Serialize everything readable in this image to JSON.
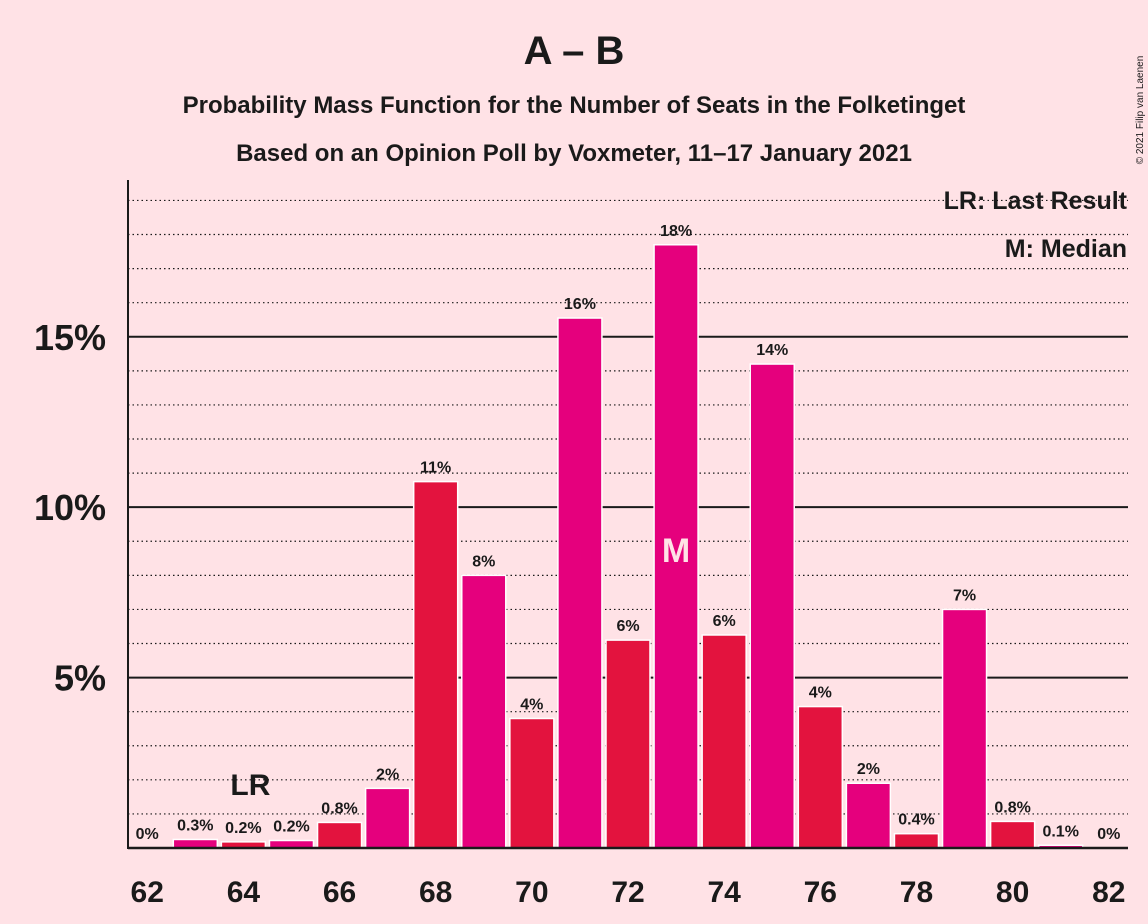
{
  "chart_data": {
    "type": "bar",
    "title": "A – B",
    "subtitle_1": "Probability Mass Function for the Number of Seats in the Folketinget",
    "subtitle_2": "Based on an Opinion Poll by Voxmeter, 11–17 January 2021",
    "copyright": "© 2021 Filip van Laenen",
    "legend": {
      "placement": "top-right",
      "last_result": "LR: Last Result",
      "median": "M: Median"
    },
    "x_ticks": [
      "62",
      "64",
      "66",
      "68",
      "70",
      "72",
      "74",
      "76",
      "78",
      "80",
      "82"
    ],
    "y_ticks": [
      {
        "value": 5,
        "label": "5%"
      },
      {
        "value": 10,
        "label": "10%"
      },
      {
        "value": 15,
        "label": "15%"
      }
    ],
    "ylim": [
      0,
      19.6
    ],
    "xlim": [
      61.6,
      82.4
    ],
    "last_result_seat": 64,
    "last_result_label": "LR",
    "median_seat": 73,
    "median_label": "M",
    "colors": {
      "even": "#E3133E",
      "odd": "#E5007D",
      "background": "#FFE2E6",
      "text": "#1a1a1a"
    },
    "bars": [
      {
        "seat": 62,
        "value": 0.0,
        "label": "0%"
      },
      {
        "seat": 63,
        "value": 0.25,
        "label": "0.3%"
      },
      {
        "seat": 64,
        "value": 0.18,
        "label": "0.2%"
      },
      {
        "seat": 65,
        "value": 0.22,
        "label": "0.2%"
      },
      {
        "seat": 66,
        "value": 0.75,
        "label": "0.8%"
      },
      {
        "seat": 67,
        "value": 1.75,
        "label": "2%"
      },
      {
        "seat": 68,
        "value": 10.75,
        "label": "11%"
      },
      {
        "seat": 69,
        "value": 8.0,
        "label": "8%"
      },
      {
        "seat": 70,
        "value": 3.8,
        "label": "4%"
      },
      {
        "seat": 71,
        "value": 15.55,
        "label": "16%"
      },
      {
        "seat": 72,
        "value": 6.1,
        "label": "6%"
      },
      {
        "seat": 73,
        "value": 17.7,
        "label": "18%"
      },
      {
        "seat": 74,
        "value": 6.25,
        "label": "6%"
      },
      {
        "seat": 75,
        "value": 14.2,
        "label": "14%"
      },
      {
        "seat": 76,
        "value": 4.15,
        "label": "4%"
      },
      {
        "seat": 77,
        "value": 1.9,
        "label": "2%"
      },
      {
        "seat": 78,
        "value": 0.42,
        "label": "0.4%"
      },
      {
        "seat": 79,
        "value": 7.0,
        "label": "7%"
      },
      {
        "seat": 80,
        "value": 0.78,
        "label": "0.8%"
      },
      {
        "seat": 81,
        "value": 0.08,
        "label": "0.1%"
      },
      {
        "seat": 82,
        "value": 0.0,
        "label": "0%"
      }
    ]
  }
}
